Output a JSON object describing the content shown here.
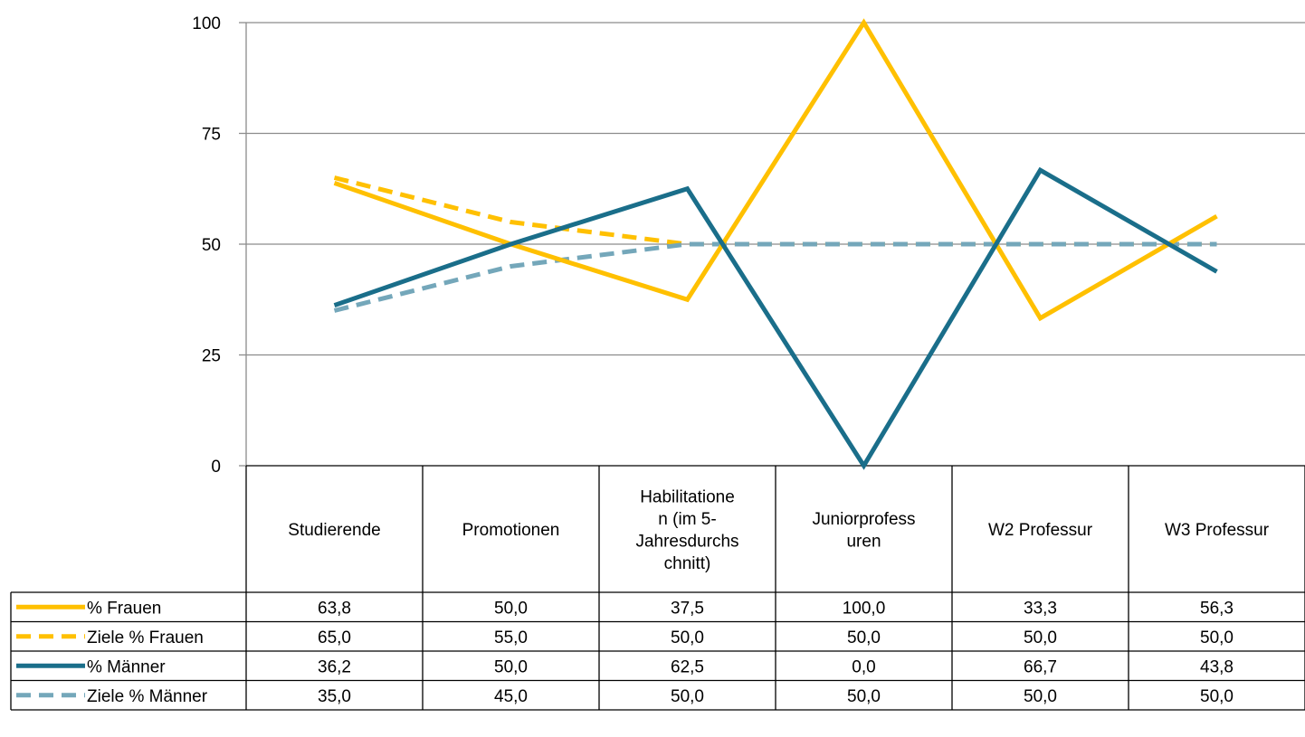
{
  "chart_data": {
    "type": "line",
    "title": "",
    "xlabel": "",
    "ylabel": "",
    "ylim": [
      0,
      100
    ],
    "yticks": [
      "0",
      "25",
      "50",
      "75",
      "100"
    ],
    "grid": true,
    "legend": "data-table-left",
    "categories": [
      [
        "Studierende"
      ],
      [
        "Promotionen"
      ],
      [
        "Habilitatione",
        "n (im 5-",
        "Jahresdurchs",
        "chnitt)"
      ],
      [
        "Juniorprofess",
        "uren"
      ],
      [
        "W2 Professur"
      ],
      [
        "W3 Professur"
      ]
    ],
    "series": [
      {
        "name": "% Frauen",
        "color": "#FFC000",
        "dash": "solid",
        "values": [
          63.8,
          50.0,
          37.5,
          100.0,
          33.3,
          56.3
        ],
        "labels": [
          "63,8",
          "50,0",
          "37,5",
          "100,0",
          "33,3",
          "56,3"
        ]
      },
      {
        "name": "Ziele % Frauen",
        "color": "#FFC000",
        "dash": "dashed",
        "values": [
          65.0,
          55.0,
          50.0,
          50.0,
          50.0,
          50.0
        ],
        "labels": [
          "65,0",
          "55,0",
          "50,0",
          "50,0",
          "50,0",
          "50,0"
        ]
      },
      {
        "name": "% Männer",
        "color": "#1A6E8A",
        "dash": "solid",
        "values": [
          36.2,
          50.0,
          62.5,
          0.0,
          66.7,
          43.8
        ],
        "labels": [
          "36,2",
          "50,0",
          "62,5",
          "0,0",
          "66,7",
          "43,8"
        ]
      },
      {
        "name": "Ziele % Männer",
        "color": "#74A7BA",
        "dash": "dashed",
        "values": [
          35.0,
          45.0,
          50.0,
          50.0,
          50.0,
          50.0
        ],
        "labels": [
          "35,0",
          "45,0",
          "50,0",
          "50,0",
          "50,0",
          "50,0"
        ]
      }
    ]
  }
}
